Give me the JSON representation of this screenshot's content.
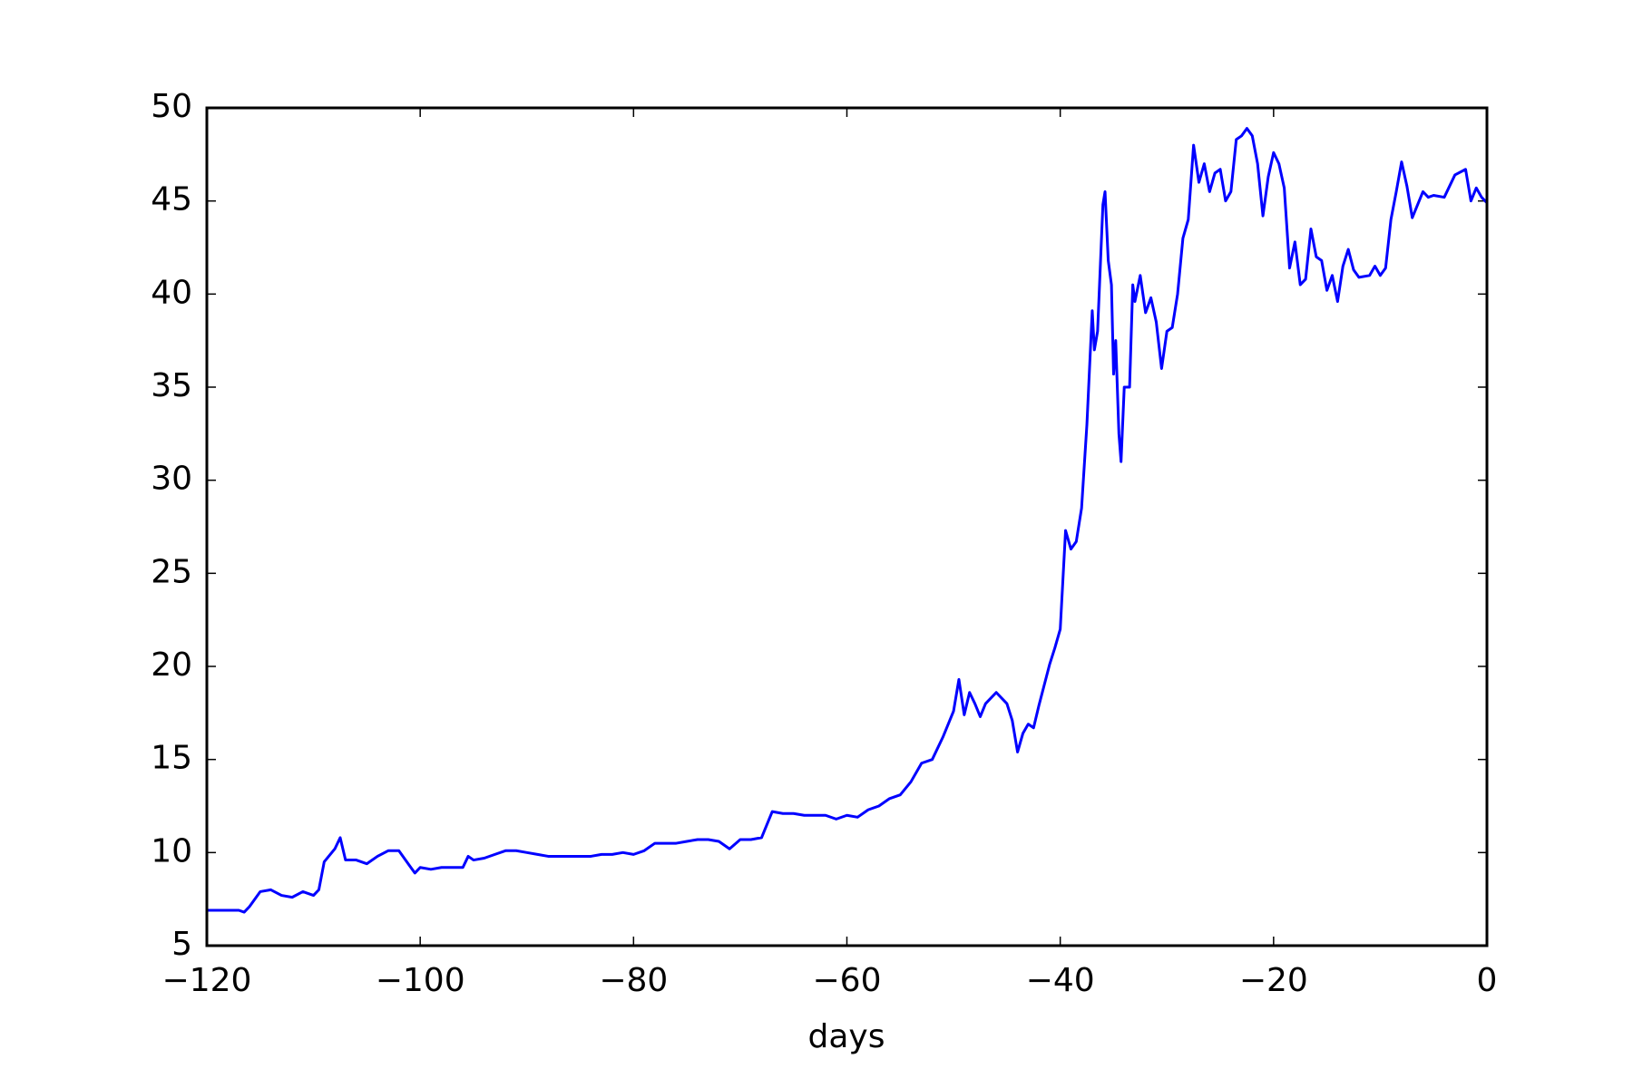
{
  "chart_data": {
    "type": "line",
    "x_label": "days",
    "x": [
      -120,
      -119,
      -118,
      -117,
      -116.5,
      -116,
      -115,
      -114,
      -113,
      -112,
      -111,
      -110,
      -109.5,
      -109,
      -108,
      -107.5,
      -107,
      -106,
      -105,
      -104,
      -103,
      -102,
      -101,
      -100.5,
      -100,
      -99,
      -98,
      -97,
      -96,
      -95.5,
      -95,
      -94,
      -93,
      -92,
      -91,
      -90,
      -89,
      -88,
      -87,
      -86,
      -85,
      -84,
      -83,
      -82,
      -81,
      -80,
      -79,
      -78,
      -77,
      -76,
      -75,
      -74,
      -73,
      -72,
      -71,
      -70,
      -69,
      -68,
      -67,
      -66,
      -65,
      -64,
      -63,
      -62,
      -61,
      -60,
      -59,
      -58,
      -57,
      -56,
      -55,
      -54,
      -53,
      -52,
      -51,
      -50,
      -49.5,
      -49,
      -48.5,
      -48,
      -47.5,
      -47,
      -46,
      -45,
      -44.5,
      -44,
      -43.5,
      -43,
      -42.5,
      -42,
      -41,
      -40.5,
      -40,
      -39.5,
      -39,
      -38.5,
      -38,
      -37.5,
      -37,
      -36.8,
      -36.5,
      -36,
      -35.8,
      -35.5,
      -35.2,
      -35,
      -34.8,
      -34.5,
      -34.3,
      -34,
      -33.5,
      -33.2,
      -33,
      -32.5,
      -32,
      -31.5,
      -31,
      -30.5,
      -30,
      -29.5,
      -29,
      -28.5,
      -28,
      -27.5,
      -27,
      -26.5,
      -26,
      -25.5,
      -25,
      -24.5,
      -24,
      -23.5,
      -23,
      -22.5,
      -22,
      -21.5,
      -21,
      -20.5,
      -20,
      -19.5,
      -19,
      -18.5,
      -18,
      -17.5,
      -17,
      -16.5,
      -16,
      -15.5,
      -15,
      -14.5,
      -14,
      -13.5,
      -13,
      -12.5,
      -12,
      -11,
      -10.5,
      -10,
      -9.5,
      -9,
      -8.5,
      -8,
      -7.5,
      -7,
      -6.5,
      -6,
      -5.5,
      -5,
      -4,
      -3,
      -2,
      -1.5,
      -1,
      -0.5,
      0
    ],
    "series": [
      {
        "color": "#0000ff",
        "values": [
          6.9,
          6.9,
          6.9,
          6.9,
          6.8,
          7.1,
          7.9,
          8.0,
          7.7,
          7.6,
          7.9,
          7.7,
          8.0,
          9.5,
          10.2,
          10.8,
          9.6,
          9.6,
          9.4,
          9.8,
          10.1,
          10.1,
          9.3,
          8.9,
          9.2,
          9.1,
          9.2,
          9.2,
          9.2,
          9.8,
          9.6,
          9.7,
          9.9,
          10.1,
          10.1,
          10.0,
          9.9,
          9.8,
          9.8,
          9.8,
          9.8,
          9.8,
          9.9,
          9.9,
          10.0,
          9.9,
          10.1,
          10.5,
          10.5,
          10.5,
          10.6,
          10.7,
          10.7,
          10.6,
          10.2,
          10.7,
          10.7,
          10.8,
          12.2,
          12.1,
          12.1,
          12.0,
          12.0,
          12.0,
          11.8,
          12.0,
          11.9,
          12.3,
          12.5,
          12.9,
          13.1,
          13.8,
          14.8,
          15.0,
          16.2,
          17.6,
          19.3,
          17.4,
          18.6,
          18.0,
          17.3,
          18.0,
          18.6,
          18.0,
          17.1,
          15.4,
          16.4,
          16.9,
          16.7,
          17.9,
          20.1,
          21.0,
          22.0,
          27.3,
          26.3,
          26.7,
          28.5,
          33,
          39.1,
          37,
          38,
          44.8,
          45.5,
          41.8,
          40.5,
          35.7,
          37.5,
          32.5,
          31.0,
          35,
          35,
          40.5,
          39.6,
          41,
          39,
          39.8,
          38.5,
          36,
          38.0,
          38.2,
          40,
          43,
          44,
          48,
          46,
          47,
          45.5,
          46.5,
          46.7,
          45,
          45.5,
          48.3,
          48.5,
          48.9,
          48.5,
          47,
          44.2,
          46.3,
          47.6,
          47,
          45.7,
          41.4,
          42.8,
          40.5,
          40.8,
          43.5,
          42,
          41.8,
          40.2,
          41,
          39.6,
          41.5,
          42.4,
          41.3,
          40.9,
          41.0,
          41.5,
          41.0,
          41.4,
          44.0,
          45.5,
          47.1,
          45.8,
          44.1,
          44.8,
          45.5,
          45.2,
          45.3,
          45.2,
          46.4,
          46.7,
          45.0,
          45.7,
          45.2,
          44.9
        ]
      }
    ],
    "xlim": [
      -120,
      0
    ],
    "xticks": [
      {
        "value": -120,
        "label": "−120"
      },
      {
        "value": -100,
        "label": "−100"
      },
      {
        "value": -80,
        "label": "−80"
      },
      {
        "value": -60,
        "label": "−60"
      },
      {
        "value": -40,
        "label": "−40"
      },
      {
        "value": -20,
        "label": "−20"
      },
      0
    ],
    "ylim": [
      5,
      50
    ],
    "yticks": [
      5,
      10,
      15,
      20,
      25,
      30,
      35,
      40,
      45,
      50
    ],
    "grid": false
  }
}
